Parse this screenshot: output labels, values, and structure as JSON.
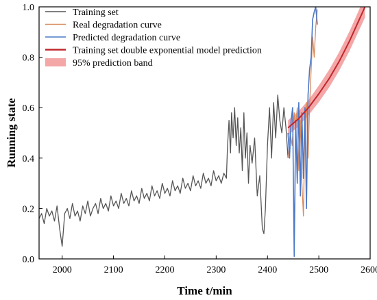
{
  "chart_data": {
    "type": "line",
    "xlabel": "Time t/min",
    "ylabel": "Running state",
    "xlim": [
      1955,
      2600
    ],
    "ylim": [
      0,
      1.0
    ],
    "xticks": [
      2000,
      2100,
      2200,
      2300,
      2400,
      2500,
      2600
    ],
    "yticks": [
      0.0,
      0.2,
      0.4,
      0.6,
      0.8,
      1.0
    ],
    "ytick_labels": [
      "0.0",
      "0.2",
      "0.4",
      "0.6",
      "0.8",
      "1.0"
    ],
    "grid": false,
    "legend_position": "top-left",
    "legend": [
      {
        "label": "Training set",
        "color": "#555555",
        "kind": "line"
      },
      {
        "label": "Real degradation curve",
        "color": "#d98a5c",
        "kind": "line"
      },
      {
        "label": "Predicted degradation curve",
        "color": "#4a78c8",
        "kind": "line"
      },
      {
        "label": "Training set double exponential model prediction",
        "color": "#c0272d",
        "kind": "thickline"
      },
      {
        "label": "95% prediction band",
        "color": "#f08a8a",
        "kind": "band"
      }
    ],
    "series": [
      {
        "name": "Training set",
        "color": "#555555",
        "x": [
          1955,
          1960,
          1965,
          1970,
          1975,
          1980,
          1985,
          1990,
          1995,
          2000,
          2005,
          2010,
          2015,
          2020,
          2025,
          2030,
          2035,
          2040,
          2045,
          2050,
          2055,
          2060,
          2065,
          2070,
          2075,
          2080,
          2085,
          2090,
          2095,
          2100,
          2105,
          2110,
          2115,
          2120,
          2125,
          2130,
          2135,
          2140,
          2145,
          2150,
          2155,
          2160,
          2165,
          2170,
          2175,
          2180,
          2185,
          2190,
          2195,
          2200,
          2205,
          2210,
          2215,
          2220,
          2225,
          2230,
          2235,
          2240,
          2245,
          2250,
          2255,
          2260,
          2265,
          2270,
          2275,
          2280,
          2285,
          2290,
          2295,
          2300,
          2305,
          2310,
          2315,
          2320,
          2322,
          2325,
          2328,
          2330,
          2333,
          2336,
          2339,
          2342,
          2345,
          2348,
          2351,
          2354,
          2357,
          2360,
          2363,
          2366,
          2370,
          2375,
          2380,
          2385,
          2390,
          2393,
          2396,
          2400,
          2404,
          2408,
          2412,
          2416,
          2420,
          2424,
          2428,
          2432,
          2436,
          2440
        ],
        "y": [
          0.16,
          0.18,
          0.14,
          0.2,
          0.17,
          0.19,
          0.15,
          0.21,
          0.12,
          0.05,
          0.18,
          0.2,
          0.16,
          0.22,
          0.17,
          0.19,
          0.15,
          0.21,
          0.18,
          0.23,
          0.17,
          0.2,
          0.22,
          0.18,
          0.24,
          0.2,
          0.22,
          0.19,
          0.25,
          0.21,
          0.23,
          0.2,
          0.26,
          0.22,
          0.24,
          0.21,
          0.27,
          0.23,
          0.25,
          0.22,
          0.28,
          0.24,
          0.26,
          0.23,
          0.29,
          0.25,
          0.27,
          0.24,
          0.3,
          0.26,
          0.28,
          0.25,
          0.31,
          0.27,
          0.29,
          0.26,
          0.32,
          0.28,
          0.3,
          0.27,
          0.33,
          0.29,
          0.31,
          0.28,
          0.34,
          0.3,
          0.32,
          0.29,
          0.35,
          0.31,
          0.33,
          0.3,
          0.34,
          0.32,
          0.44,
          0.55,
          0.42,
          0.58,
          0.48,
          0.6,
          0.45,
          0.56,
          0.42,
          0.52,
          0.35,
          0.58,
          0.4,
          0.5,
          0.3,
          0.45,
          0.38,
          0.48,
          0.25,
          0.33,
          0.12,
          0.1,
          0.2,
          0.45,
          0.6,
          0.4,
          0.62,
          0.48,
          0.65,
          0.55,
          0.5,
          0.6,
          0.52,
          0.4
        ]
      },
      {
        "name": "Real degradation curve",
        "color": "#d98a5c",
        "x": [
          2440,
          2444,
          2448,
          2452,
          2455,
          2458,
          2461,
          2464,
          2467,
          2470,
          2473,
          2476,
          2479,
          2482,
          2485,
          2488,
          2491,
          2494,
          2497
        ],
        "y": [
          0.4,
          0.5,
          0.45,
          0.58,
          0.52,
          0.6,
          0.35,
          0.55,
          0.3,
          0.17,
          0.55,
          0.62,
          0.4,
          0.6,
          0.75,
          0.88,
          0.8,
          0.92,
          0.99
        ]
      },
      {
        "name": "Predicted degradation curve",
        "color": "#4a78c8",
        "x": [
          2440,
          2443,
          2446,
          2449,
          2452,
          2455,
          2458,
          2461,
          2464,
          2467,
          2470,
          2473,
          2476,
          2479,
          2482,
          2485,
          2488,
          2491,
          2494,
          2497
        ],
        "y": [
          0.5,
          0.4,
          0.55,
          0.6,
          0.01,
          0.55,
          0.3,
          0.62,
          0.25,
          0.58,
          0.32,
          0.6,
          0.2,
          0.65,
          0.75,
          0.8,
          0.95,
          0.98,
          1.0,
          0.93
        ]
      }
    ],
    "fit_curve": {
      "name": "Training set double exponential model prediction",
      "color": "#c0272d",
      "x": [
        2440,
        2460,
        2480,
        2500,
        2520,
        2540,
        2560,
        2580,
        2590
      ],
      "y": [
        0.52,
        0.555,
        0.6,
        0.655,
        0.715,
        0.785,
        0.865,
        0.955,
        1.0
      ]
    },
    "prediction_band": {
      "name": "95% prediction band",
      "color": "#f08a8a",
      "x": [
        2440,
        2460,
        2480,
        2500,
        2520,
        2540,
        2560,
        2580,
        2590
      ],
      "lower": [
        0.49,
        0.525,
        0.57,
        0.622,
        0.68,
        0.748,
        0.826,
        0.914,
        0.958
      ],
      "upper": [
        0.55,
        0.585,
        0.63,
        0.688,
        0.75,
        0.822,
        0.904,
        0.996,
        1.04
      ]
    }
  }
}
